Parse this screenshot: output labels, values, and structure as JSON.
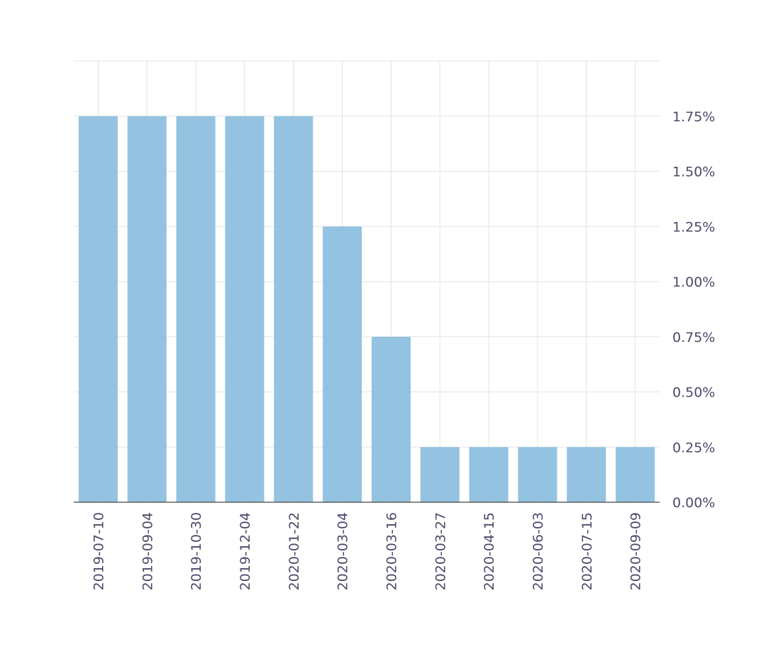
{
  "chart_data": {
    "type": "bar",
    "title": "",
    "xlabel": "",
    "ylabel": "",
    "categories": [
      "2019-07-10",
      "2019-09-04",
      "2019-10-30",
      "2019-12-04",
      "2020-01-22",
      "2020-03-04",
      "2020-03-16",
      "2020-03-27",
      "2020-04-15",
      "2020-06-03",
      "2020-07-15",
      "2020-09-09"
    ],
    "values": [
      1.75,
      1.75,
      1.75,
      1.75,
      1.75,
      1.25,
      0.75,
      0.25,
      0.25,
      0.25,
      0.25,
      0.25
    ],
    "ylim": [
      0,
      2.0
    ],
    "yticks": [
      0,
      0.25,
      0.5,
      0.75,
      1.0,
      1.25,
      1.5,
      1.75
    ],
    "ytick_labels": [
      "0.00%",
      "0.25%",
      "0.50%",
      "0.75%",
      "1.00%",
      "1.25%",
      "1.50%",
      "1.75%"
    ],
    "y_axis_side": "right",
    "grid": true,
    "legend": false,
    "colors": {
      "bar": "#8dc0de",
      "grid": "#e3e3e3",
      "axis": "#444444",
      "tick_text": "#4a4a6a"
    }
  }
}
